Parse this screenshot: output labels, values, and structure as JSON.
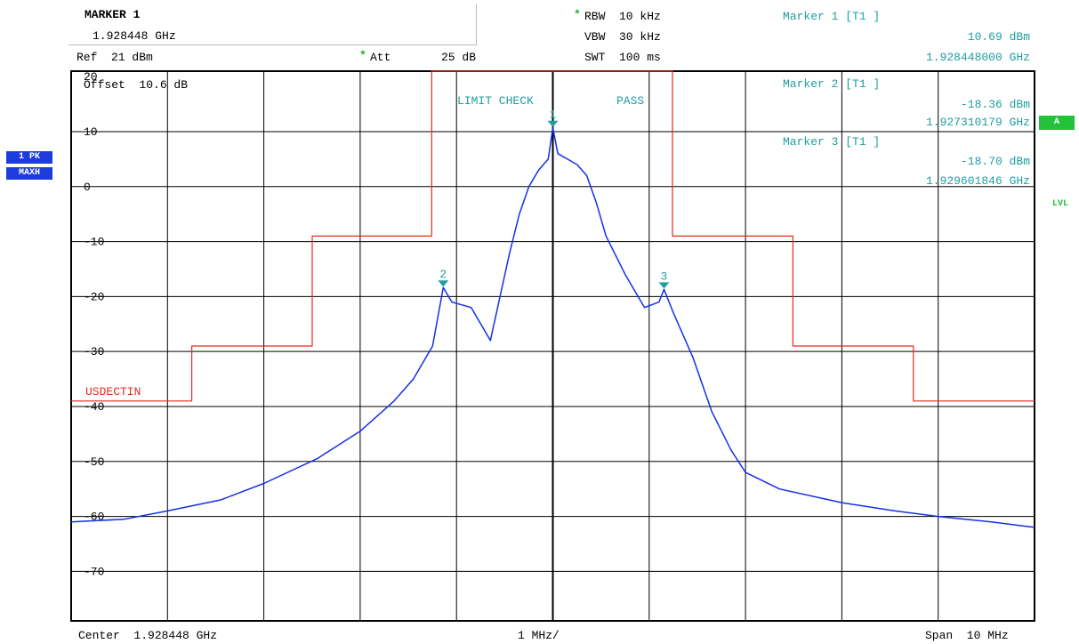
{
  "header": {
    "marker_title": "MARKER 1",
    "marker_freq": "1.928448 GHz",
    "ref": "Ref  21 dBm",
    "att_label": "Att",
    "att_value": "25 dB",
    "rbw": "RBW  10 kHz",
    "vbw": "VBW  30 kHz",
    "swt": "SWT  100 ms",
    "star": "*"
  },
  "markers_readout": [
    {
      "label": "Marker 1 [T1 ]",
      "level": "10.69 dBm",
      "freq": "1.928448000 GHz"
    },
    {
      "label": "Marker 2 [T1 ]",
      "level": "-18.36 dBm",
      "freq": "1.927310179 GHz"
    },
    {
      "label": "Marker 3 [T1 ]",
      "level": "-18.70 dBm",
      "freq": "1.929601846 GHz"
    }
  ],
  "side": {
    "trace_badge": "1 PK",
    "mode_badge": "MAXH",
    "a_badge": "A",
    "lvl": "LVL"
  },
  "plot_text": {
    "offset": "Offset  10.6 dB",
    "limit_check": "LIMIT CHECK",
    "limit_result": "PASS",
    "limit_name": "USDECTIN"
  },
  "footer": {
    "center": "Center  1.928448 GHz",
    "div": "1 MHz/",
    "span": "Span  10 MHz"
  },
  "colors": {
    "trace": "#1530e6",
    "limit": "#e8291c",
    "marker": "#1f9e9e",
    "badge_blue": "#1e3cdc",
    "badge_green": "#23c23a"
  },
  "chart_data": {
    "type": "line",
    "title": "",
    "xlabel": "",
    "ylabel": "",
    "xlim": [
      1.923448,
      1.933448
    ],
    "ylim": [
      -79,
      21
    ],
    "y_ticks": [
      20,
      10,
      0,
      -10,
      -20,
      -30,
      -40,
      -50,
      -60,
      -70
    ],
    "y_tick_labels": [
      "20",
      "10",
      "0",
      "-10",
      "-20",
      "-30",
      "-40",
      "-50",
      "-60",
      "-70"
    ],
    "x_unit": "GHz",
    "grid": true,
    "series": [
      {
        "kind": "trace",
        "x": [
          1.923448,
          1.924,
          1.924448,
          1.925,
          1.925448,
          1.926,
          1.926448,
          1.9268,
          1.927,
          1.9272,
          1.92731,
          1.9274,
          1.9276,
          1.9278,
          1.92785,
          1.928,
          1.9281,
          1.9282,
          1.9283,
          1.9284,
          1.928448,
          1.9285,
          1.9286,
          1.9287,
          1.9288,
          1.9289,
          1.929,
          1.9292,
          1.9294,
          1.92955,
          1.929602,
          1.9297,
          1.9299,
          1.9301,
          1.9303,
          1.930448,
          1.9308,
          1.931448,
          1.932,
          1.932448,
          1.933,
          1.933448
        ],
        "y": [
          -61,
          -60.5,
          -59,
          -57,
          -54,
          -49.5,
          -44.5,
          -39,
          -35,
          -29,
          -18.36,
          -21,
          -22,
          -28,
          -24,
          -12,
          -5,
          0,
          3,
          5,
          10.69,
          6,
          5,
          4,
          2,
          -3,
          -9,
          -16,
          -22,
          -21,
          -18.7,
          -23,
          -31,
          -41,
          -48,
          -52,
          -55,
          -57.5,
          -59,
          -60,
          -61,
          -62
        ]
      },
      {
        "kind": "limit",
        "x": [
          1.923448,
          1.9247,
          1.9247,
          1.92595,
          1.92595,
          1.92719,
          1.92719,
          1.92969,
          1.92969,
          1.93094,
          1.93094,
          1.93219,
          1.93219,
          1.933448
        ],
        "y": [
          -39,
          -39,
          -29,
          -29,
          -9,
          -9,
          21,
          21,
          -9,
          -9,
          -29,
          -29,
          -39,
          -39
        ]
      }
    ],
    "markers": [
      {
        "label": "1",
        "x": 1.928448,
        "y": 10.69
      },
      {
        "label": "2",
        "x": 1.927310179,
        "y": -18.36
      },
      {
        "label": "3",
        "x": 1.929601846,
        "y": -18.7
      }
    ]
  }
}
